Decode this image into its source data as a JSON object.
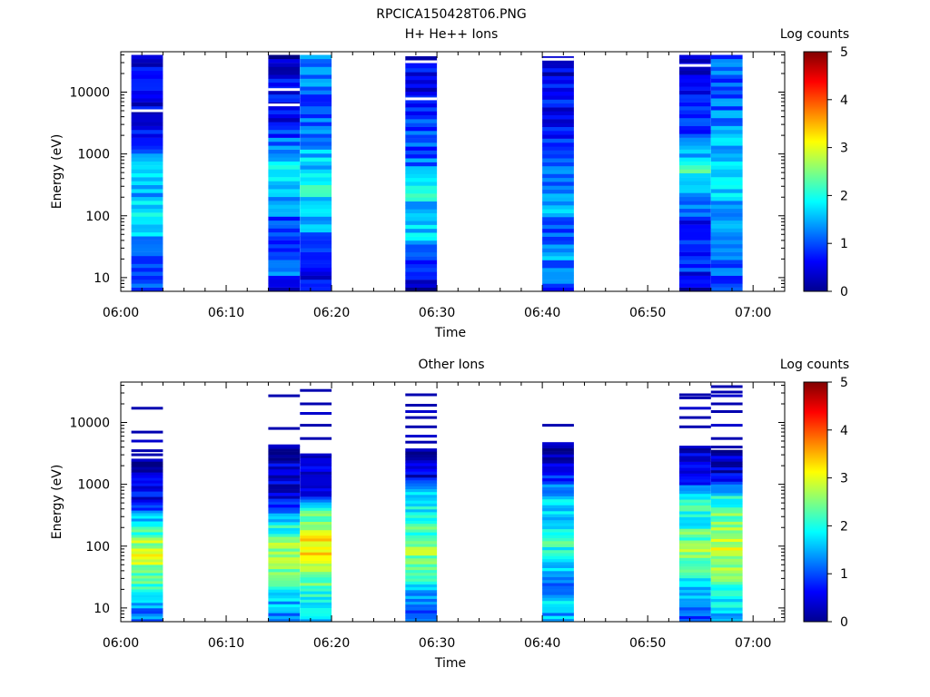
{
  "figure_title": "RPCICA150428T06.PNG",
  "chart_data": [
    {
      "type": "heatmap",
      "title": "H+ He++ Ions",
      "xlabel": "Time",
      "ylabel": "Energy (eV)",
      "y_scale": "log",
      "ylim": [
        6,
        45000
      ],
      "xlim": [
        "06:00",
        "07:03"
      ],
      "x_tick_labels": [
        "06:00",
        "06:10",
        "06:20",
        "06:30",
        "06:40",
        "06:50",
        "07:00"
      ],
      "y_tick_labels": [
        "10",
        "100",
        "1000",
        "10000"
      ],
      "colorbar": {
        "label": "Log counts",
        "range": [
          0,
          5
        ],
        "tick_labels": [
          "0",
          "1",
          "2",
          "3",
          "4",
          "5"
        ]
      },
      "strips": [
        {
          "start": "06:01",
          "end": "06:04",
          "e_max": 40000,
          "gaps": [
            5000
          ],
          "profile": [
            1.0,
            0.9,
            1.2,
            1.6,
            1.9,
            1.5,
            1.8,
            1.2,
            0.8,
            0.5,
            0.6,
            0.6,
            0.5
          ]
        },
        {
          "start": "06:14",
          "end": "06:17",
          "e_max": 40000,
          "gaps": [
            6200,
            11000
          ],
          "profile": [
            0.5,
            1.2,
            0.9,
            0.7,
            1.2,
            1.6,
            2.1,
            1.5,
            0.9,
            0.5,
            0.6,
            0.5,
            0.3
          ]
        },
        {
          "start": "06:17",
          "end": "06:20",
          "e_max": 40000,
          "gaps": [],
          "profile": [
            0.6,
            0.4,
            1.1,
            1.3,
            1.7,
            1.9,
            1.8,
            1.5,
            1.3,
            1.1,
            1.1,
            1.2,
            1.3
          ]
        },
        {
          "start": "06:27",
          "end": "06:30",
          "e_max": 38000,
          "gaps": [
            7800,
            31000
          ],
          "profile": [
            0.3,
            0.8,
            1.3,
            1.6,
            1.3,
            1.9,
            1.4,
            1.0,
            1.0,
            0.8,
            0.6,
            0.6,
            0.4
          ]
        },
        {
          "start": "06:40",
          "end": "06:43",
          "e_max": 38000,
          "gaps": [
            34000
          ],
          "profile": [
            0.9,
            1.2,
            1.4,
            1.0,
            1.5,
            1.4,
            1.1,
            0.8,
            0.7,
            0.6,
            0.6,
            0.5,
            0.4
          ]
        },
        {
          "start": "06:53",
          "end": "06:56",
          "e_max": 40000,
          "gaps": [
            27000
          ],
          "profile": [
            0.4,
            0.8,
            0.7,
            0.6,
            1.0,
            1.4,
            2.1,
            1.6,
            1.0,
            0.6,
            0.7,
            0.5,
            0.4
          ]
        },
        {
          "start": "06:56",
          "end": "06:59",
          "e_max": 40000,
          "gaps": [],
          "profile": [
            0.9,
            1.0,
            1.2,
            1.4,
            1.5,
            1.6,
            1.8,
            1.6,
            1.4,
            1.2,
            1.1,
            1.1,
            1.1
          ]
        }
      ]
    },
    {
      "type": "heatmap",
      "title": "Other Ions",
      "xlabel": "Time",
      "ylabel": "Energy (eV)",
      "y_scale": "log",
      "ylim": [
        6,
        45000
      ],
      "xlim": [
        "06:00",
        "07:03"
      ],
      "x_tick_labels": [
        "06:00",
        "06:10",
        "06:20",
        "06:30",
        "06:40",
        "06:50",
        "07:00"
      ],
      "y_tick_labels": [
        "10",
        "100",
        "1000",
        "10000"
      ],
      "colorbar": {
        "label": "Log counts",
        "range": [
          0,
          5
        ],
        "tick_labels": [
          "0",
          "1",
          "2",
          "3",
          "4",
          "5"
        ]
      },
      "strips": [
        {
          "start": "06:01",
          "end": "06:04",
          "e_max": 2600,
          "gaps": [],
          "profile": [
            1.1,
            1.4,
            1.9,
            2.2,
            2.6,
            3.0,
            2.6,
            1.9,
            1.3,
            0.6,
            0.5,
            0.4,
            0.3
          ]
        },
        {
          "start": "06:14",
          "end": "06:17",
          "e_max": 4200,
          "gaps": [],
          "profile": [
            1.2,
            1.5,
            1.8,
            2.3,
            2.6,
            2.7,
            2.2,
            1.6,
            0.7,
            0.5,
            0.4,
            0.4,
            0.3
          ]
        },
        {
          "start": "06:17",
          "end": "06:20",
          "e_max": 3000,
          "gaps": [],
          "profile": [
            1.5,
            1.7,
            2.0,
            2.5,
            2.8,
            3.2,
            3.4,
            2.7,
            2.2,
            0.6,
            0.5,
            0.4,
            0.4
          ]
        },
        {
          "start": "06:27",
          "end": "06:30",
          "e_max": 3800,
          "gaps": [],
          "profile": [
            1.0,
            1.3,
            1.6,
            2.1,
            2.5,
            2.6,
            2.3,
            2.0,
            1.8,
            1.5,
            0.5,
            0.4,
            0.3
          ]
        },
        {
          "start": "06:40",
          "end": "06:43",
          "e_max": 4800,
          "gaps": [],
          "profile": [
            1.4,
            1.6,
            1.4,
            1.2,
            1.9,
            2.1,
            2.0,
            1.5,
            1.6,
            1.4,
            0.5,
            0.4,
            0.3
          ]
        },
        {
          "start": "06:53",
          "end": "06:56",
          "e_max": 4000,
          "gaps": [],
          "profile": [
            0.9,
            1.0,
            1.6,
            2.0,
            2.4,
            2.6,
            2.3,
            1.9,
            2.2,
            1.5,
            0.5,
            0.4,
            0.3
          ]
        },
        {
          "start": "06:56",
          "end": "06:59",
          "e_max": 3600,
          "gaps": [],
          "profile": [
            1.6,
            1.8,
            2.0,
            2.3,
            2.7,
            2.9,
            2.9,
            2.5,
            2.2,
            1.9,
            0.5,
            0.4,
            0.4
          ]
        }
      ],
      "sparse_high_energy_lines": [
        {
          "start": "06:01",
          "end": "06:04",
          "energies": [
            17000,
            7000,
            5000,
            3500,
            3000
          ]
        },
        {
          "start": "06:14",
          "end": "06:17",
          "energies": [
            27000,
            8000,
            4200
          ]
        },
        {
          "start": "06:17",
          "end": "06:20",
          "energies": [
            33000,
            20000,
            14000,
            9000,
            5500,
            3000
          ]
        },
        {
          "start": "06:27",
          "end": "06:30",
          "energies": [
            28000,
            19000,
            15000,
            12000,
            8500,
            6000,
            4800
          ]
        },
        {
          "start": "06:40",
          "end": "06:43",
          "energies": [
            9000
          ]
        },
        {
          "start": "06:53",
          "end": "06:56",
          "energies": [
            28000,
            25000,
            17000,
            12000,
            8500,
            4000
          ]
        },
        {
          "start": "06:56",
          "end": "06:59",
          "energies": [
            38000,
            31000,
            27000,
            20000,
            15000,
            9000,
            5500,
            4000
          ]
        }
      ]
    }
  ]
}
